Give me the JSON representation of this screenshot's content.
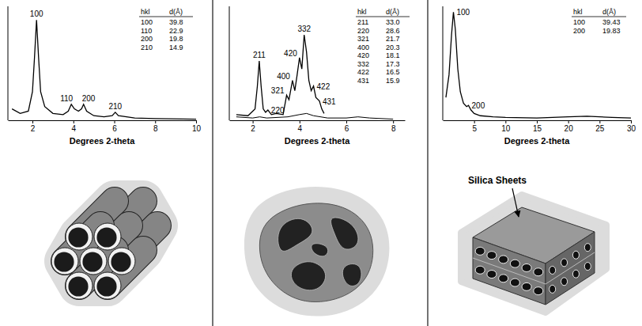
{
  "chart_data": [
    {
      "type": "line",
      "x_label": "Degrees 2-theta",
      "xlim": [
        0.8,
        10
      ],
      "xticks": [
        2,
        4,
        6,
        8,
        10
      ],
      "ylim": [
        0,
        100
      ],
      "tick_labels": "x",
      "series": [
        {
          "color": "#000000",
          "x": [
            1.0,
            1.4,
            1.8,
            2.0,
            2.1,
            2.2,
            2.3,
            2.4,
            2.6,
            3.0,
            3.5,
            3.75,
            3.9,
            4.05,
            4.25,
            4.4,
            4.5,
            4.65,
            5.0,
            5.5,
            5.9,
            6.05,
            6.2,
            7.0,
            8.0,
            10.0
          ],
          "values": [
            10,
            6,
            8,
            25,
            55,
            88,
            55,
            25,
            12,
            6,
            5,
            8,
            14,
            10,
            8,
            10,
            14,
            8,
            4,
            3,
            4,
            7,
            4,
            2,
            1.5,
            1
          ]
        }
      ],
      "peaks": {
        "labels": [
          "100",
          "110",
          "200",
          "210"
        ],
        "x": [
          2.2,
          3.9,
          4.5,
          6.05
        ],
        "y": [
          88,
          14,
          14,
          7
        ]
      },
      "table": {
        "header": [
          "hkl",
          "d(Å)"
        ],
        "rows": [
          [
            "100",
            "39.8"
          ],
          [
            "110",
            "22.9"
          ],
          [
            "200",
            "19.8"
          ],
          [
            "210",
            "14.9"
          ]
        ]
      }
    },
    {
      "type": "line",
      "x_label": "Degrees 2-theta",
      "xlim": [
        1,
        8.5
      ],
      "xticks": [
        2,
        4,
        6,
        8
      ],
      "ylim": [
        0,
        100
      ],
      "tick_labels": "x",
      "series": [
        {
          "color": "#000000",
          "x": [
            1.3,
            1.8,
            2.1,
            2.2,
            2.28,
            2.36,
            2.45,
            2.55,
            2.65,
            2.8,
            3.0,
            3.3,
            3.45,
            3.55,
            3.7,
            3.8,
            3.9,
            4.0,
            4.1,
            4.2,
            4.3,
            4.4,
            4.5,
            4.6,
            4.7,
            4.85,
            4.95,
            5.05
          ],
          "values": [
            5,
            4,
            10,
            30,
            52,
            30,
            10,
            7,
            9,
            5,
            6,
            5,
            22,
            18,
            35,
            26,
            40,
            55,
            45,
            75,
            60,
            35,
            26,
            30,
            20,
            17,
            10,
            6
          ]
        },
        {
          "color": "#000000",
          "x": [
            1.3,
            2.0,
            2.3,
            2.6,
            3.5,
            4.0,
            4.3,
            4.6,
            5.2,
            6.0,
            6.5,
            7.0,
            8.0
          ],
          "values": [
            3,
            2,
            3,
            2,
            3,
            5,
            6,
            4,
            2,
            2,
            3,
            2,
            1
          ]
        }
      ],
      "peaks": {
        "labels": [
          "211",
          "220",
          "321",
          "400",
          "420",
          "332",
          "422",
          "431"
        ],
        "x": [
          2.28,
          2.65,
          3.45,
          3.7,
          4.0,
          4.2,
          4.6,
          4.85
        ],
        "y": [
          52,
          9,
          22,
          35,
          55,
          75,
          30,
          17
        ]
      },
      "table": {
        "header": [
          "hkl",
          "d(Å)"
        ],
        "rows": [
          [
            "211",
            "33.0"
          ],
          [
            "220",
            "28.6"
          ],
          [
            "321",
            "21.7"
          ],
          [
            "400",
            "20.3"
          ],
          [
            "420",
            "18.1"
          ],
          [
            "332",
            "17.3"
          ],
          [
            "422",
            "16.5"
          ],
          [
            "431",
            "15.9"
          ]
        ]
      }
    },
    {
      "type": "line",
      "x_label": "Degrees 2-theta",
      "xlim": [
        0,
        30
      ],
      "xticks": [
        5,
        10,
        15,
        20,
        25,
        30
      ],
      "ylim": [
        0,
        100
      ],
      "tick_labels": "x",
      "series": [
        {
          "color": "#000000",
          "x": [
            0.5,
            1.0,
            1.4,
            1.7,
            2.0,
            2.4,
            2.8,
            3.3,
            3.8,
            4.1,
            4.5,
            5.0,
            6.0,
            8.0,
            10.0,
            15.0,
            20.0,
            23.0,
            27.0,
            30.0
          ],
          "values": [
            20,
            40,
            75,
            95,
            80,
            45,
            25,
            15,
            12,
            13,
            9,
            6,
            4,
            3,
            2.5,
            2,
            3,
            3.5,
            2.5,
            2
          ]
        }
      ],
      "peaks": {
        "labels": [
          "100",
          "200"
        ],
        "x": [
          1.7,
          4.1
        ],
        "y": [
          95,
          13
        ]
      },
      "table": {
        "header": [
          "hkl",
          "d(Å)"
        ],
        "rows": [
          [
            "100",
            "39.43"
          ],
          [
            "200",
            "19.83"
          ]
        ]
      },
      "annotations": [
        "Silica Sheets"
      ]
    }
  ]
}
